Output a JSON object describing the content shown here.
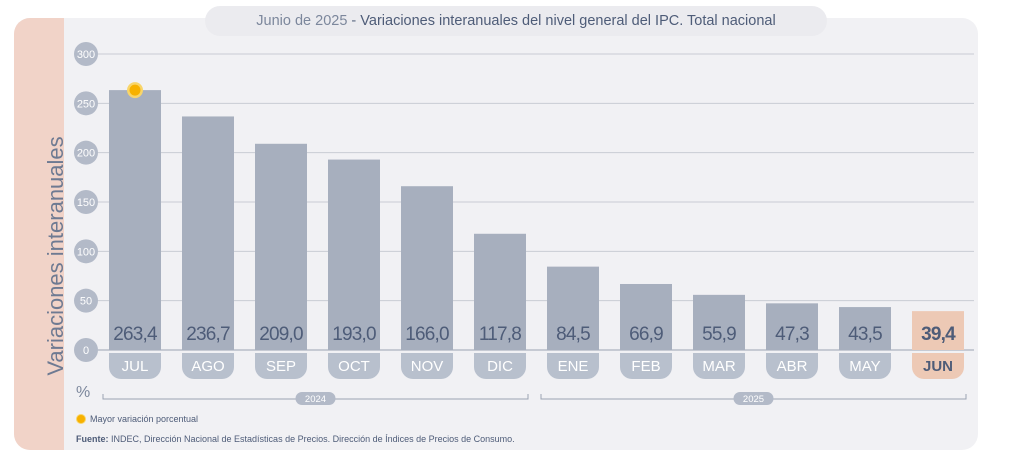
{
  "header": {
    "date": "Junio de 2025",
    "separator": " - ",
    "title": "Variaciones interanuales del nivel general del IPC. Total nacional"
  },
  "y_axis_title": "Variaciones interanuales",
  "unit_label": "%",
  "legend_label": "Mayor variación porcentual",
  "source": {
    "label": "Fuente:",
    "text": " INDEC, Dirección Nacional de Estadísticas de Precios. Dirección de Índices de Precios de Consumo."
  },
  "colors": {
    "bar": "#a7afbe",
    "highlight_bar": "#edc9b5",
    "month_pill": "#b8c0cd",
    "highlight_pill": "#edc9b5",
    "marker": "#f7b100",
    "text": "#4e5c78",
    "grid": "#c9ccd4"
  },
  "chart_data": {
    "type": "bar",
    "categories": [
      "JUL",
      "AGO",
      "SEP",
      "OCT",
      "NOV",
      "DIC",
      "ENE",
      "FEB",
      "MAR",
      "ABR",
      "MAY",
      "JUN"
    ],
    "value_labels": [
      "263,4",
      "236,7",
      "209,0",
      "193,0",
      "166,0",
      "117,8",
      "84,5",
      "66,9",
      "55,9",
      "47,3",
      "43,5",
      "39,4"
    ],
    "values": [
      263.4,
      236.7,
      209.0,
      193.0,
      166.0,
      117.8,
      84.5,
      66.9,
      55.9,
      47.3,
      43.5,
      39.4
    ],
    "year_groups": [
      {
        "label": "2024",
        "start": 0,
        "end": 5
      },
      {
        "label": "2025",
        "start": 6,
        "end": 11
      }
    ],
    "highlight_index": 11,
    "max_marker_index": 0,
    "yticks": [
      0,
      50,
      100,
      150,
      200,
      250,
      300
    ],
    "ylim": [
      0,
      300
    ],
    "grid": true
  }
}
